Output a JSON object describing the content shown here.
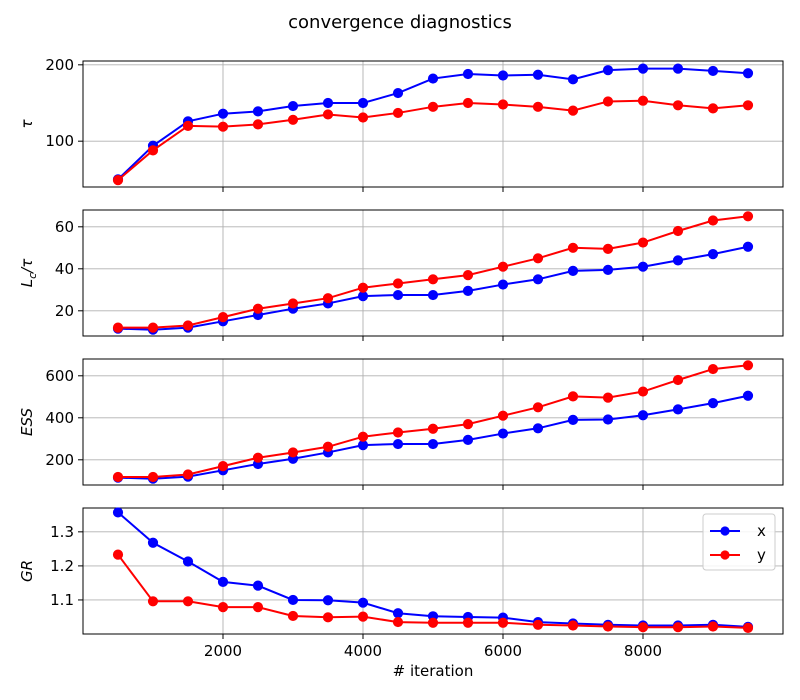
{
  "chart_data": [
    {
      "type": "line",
      "title": "convergence diagnostics",
      "ylabel": "τ",
      "xlabel": "",
      "xlim": [
        0,
        10000
      ],
      "ylim": [
        40,
        205
      ],
      "xticks": [
        2000,
        4000,
        6000,
        8000
      ],
      "yticks": [
        100,
        200
      ],
      "ytick_labels": [
        "100",
        "200"
      ],
      "grid": true,
      "x": [
        500,
        1000,
        1500,
        2000,
        2500,
        3000,
        3500,
        4000,
        4500,
        5000,
        5500,
        6000,
        6500,
        7000,
        7500,
        8000,
        8500,
        9000,
        9500
      ],
      "series": [
        {
          "name": "x",
          "color": "#0000ff",
          "values": [
            50,
            94,
            126,
            136,
            139,
            146,
            150,
            150,
            163,
            182,
            188,
            186,
            187,
            181,
            193,
            195,
            195,
            192,
            189
          ]
        },
        {
          "name": "y",
          "color": "#ff0000",
          "values": [
            49,
            88,
            120,
            119,
            122,
            128,
            135,
            131,
            137,
            145,
            150,
            148,
            145,
            140,
            152,
            153,
            147,
            143,
            147
          ]
        }
      ]
    },
    {
      "type": "line",
      "ylabel": "L_c/τ",
      "xlabel": "",
      "xlim": [
        0,
        10000
      ],
      "ylim": [
        8,
        68
      ],
      "xticks": [
        2000,
        4000,
        6000,
        8000
      ],
      "yticks": [
        20,
        40,
        60
      ],
      "ytick_labels": [
        "20",
        "40",
        "60"
      ],
      "grid": true,
      "x": [
        500,
        1000,
        1500,
        2000,
        2500,
        3000,
        3500,
        4000,
        4500,
        5000,
        5500,
        6000,
        6500,
        7000,
        7500,
        8000,
        8500,
        9000,
        9500
      ],
      "series": [
        {
          "name": "x",
          "color": "#0000ff",
          "values": [
            11.5,
            11,
            12,
            15,
            18,
            21,
            23.5,
            27,
            27.5,
            27.5,
            29.5,
            32.5,
            35,
            39,
            39.5,
            41,
            44,
            47,
            50.5
          ]
        },
        {
          "name": "y",
          "color": "#ff0000",
          "values": [
            12,
            12,
            13,
            17,
            21,
            23.5,
            26,
            31,
            33,
            35,
            37,
            41,
            45,
            50,
            49.5,
            52.5,
            58,
            63,
            65
          ]
        }
      ]
    },
    {
      "type": "line",
      "ylabel": "ESS",
      "xlabel": "",
      "xlim": [
        0,
        10000
      ],
      "ylim": [
        80,
        680
      ],
      "xticks": [
        2000,
        4000,
        6000,
        8000
      ],
      "yticks": [
        200,
        400,
        600
      ],
      "ytick_labels": [
        "200",
        "400",
        "600"
      ],
      "grid": true,
      "x": [
        500,
        1000,
        1500,
        2000,
        2500,
        3000,
        3500,
        4000,
        4500,
        5000,
        5500,
        6000,
        6500,
        7000,
        7500,
        8000,
        8500,
        9000,
        9500
      ],
      "series": [
        {
          "name": "x",
          "color": "#0000ff",
          "values": [
            115,
            110,
            120,
            150,
            180,
            205,
            235,
            270,
            275,
            275,
            295,
            325,
            350,
            390,
            392,
            412,
            440,
            470,
            505
          ]
        },
        {
          "name": "y",
          "color": "#ff0000",
          "values": [
            118,
            118,
            130,
            170,
            210,
            235,
            262,
            310,
            330,
            348,
            370,
            410,
            450,
            502,
            496,
            525,
            580,
            632,
            650
          ]
        }
      ]
    },
    {
      "type": "line",
      "ylabel": "GR",
      "xlabel": "# iteration",
      "xlim": [
        0,
        10000
      ],
      "ylim": [
        1.0,
        1.37
      ],
      "xticks": [
        2000,
        4000,
        6000,
        8000
      ],
      "xtick_labels": [
        "2000",
        "4000",
        "6000",
        "8000"
      ],
      "yticks": [
        1.1,
        1.2,
        1.3
      ],
      "ytick_labels": [
        "1.1",
        "1.2",
        "1.3"
      ],
      "grid": true,
      "legend": {
        "placement": "top-right",
        "entries": [
          "x",
          "y"
        ]
      },
      "x": [
        500,
        1000,
        1500,
        2000,
        2500,
        3000,
        3500,
        4000,
        4500,
        5000,
        5500,
        6000,
        6500,
        7000,
        7500,
        8000,
        8500,
        9000,
        9500
      ],
      "series": [
        {
          "name": "x",
          "color": "#0000ff",
          "values": [
            1.357,
            1.268,
            1.213,
            1.153,
            1.142,
            1.1,
            1.099,
            1.092,
            1.061,
            1.052,
            1.05,
            1.048,
            1.035,
            1.031,
            1.027,
            1.025,
            1.025,
            1.027,
            1.021
          ]
        },
        {
          "name": "y",
          "color": "#ff0000",
          "values": [
            1.233,
            1.096,
            1.096,
            1.079,
            1.079,
            1.053,
            1.049,
            1.051,
            1.035,
            1.033,
            1.033,
            1.033,
            1.027,
            1.025,
            1.022,
            1.02,
            1.02,
            1.022,
            1.018
          ]
        }
      ]
    }
  ]
}
